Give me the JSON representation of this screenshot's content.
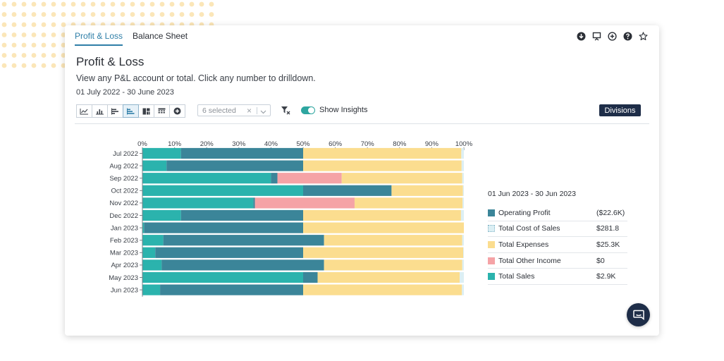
{
  "tabs": [
    {
      "label": "Profit & Loss",
      "active": true
    },
    {
      "label": "Balance Sheet",
      "active": false
    }
  ],
  "top_icons": [
    "download-icon",
    "presentation-icon",
    "add-circle-icon",
    "help-icon",
    "star-icon"
  ],
  "header": {
    "title": "Profit & Loss",
    "subtitle": "View any P&L account or total. Click any number to drilldown.",
    "date_range": "01 July 2022 - 30 June 2023"
  },
  "toolbar": {
    "chart_buttons": [
      "line-chart-icon",
      "column-chart-icon",
      "bar-chart-icon",
      "stacked-bar-chart-icon",
      "treemap-icon",
      "table-icon",
      "add-chart-icon"
    ],
    "active_index": 3,
    "select_text": "6 selected",
    "toggle_label": "Show Insights",
    "toggle_on": true,
    "divisions_label": "Divisions"
  },
  "colors": {
    "operating_profit": "#3b8599",
    "total_cost_of_sales": "#dceff4",
    "total_expenses": "#fbdd8f",
    "total_other_income": "#f5a3a6",
    "total_sales": "#2bb3ad",
    "accent": "#2f7fa8",
    "navy": "#1e2d48"
  },
  "legend": {
    "title": "01 Jun 2023 - 30 Jun 2023",
    "items": [
      {
        "name": "Operating Profit",
        "value": "($22.6K)",
        "color": "#3b8599"
      },
      {
        "name": "Total Cost of Sales",
        "value": "$281.8",
        "color": "#dceff4"
      },
      {
        "name": "Total Expenses",
        "value": "$25.3K",
        "color": "#fbdd8f"
      },
      {
        "name": "Total Other Income",
        "value": "$0",
        "color": "#f5a3a6"
      },
      {
        "name": "Total Sales",
        "value": "$2.9K",
        "color": "#2bb3ad"
      }
    ]
  },
  "chart_data": {
    "type": "bar",
    "orientation": "horizontal",
    "stacked": true,
    "categories": [
      "Jul 2022",
      "Aug 2022",
      "Sep 2022",
      "Oct 2022",
      "Nov 2022",
      "Dec 2022",
      "Jan 2023",
      "Feb 2023",
      "Mar 2023",
      "Apr 2023",
      "May 2023",
      "Jun 2023"
    ],
    "x_ticks": [
      "0%",
      "10%",
      "20%",
      "30%",
      "40%",
      "50%",
      "60%",
      "70%",
      "80%",
      "90%",
      "100%"
    ],
    "xlim": [
      0,
      100
    ],
    "series": [
      {
        "name": "Total Sales",
        "color": "#2bb3ad",
        "values": [
          12,
          7.5,
          40,
          50,
          34.5,
          12,
          0.5,
          6.5,
          4,
          6,
          50,
          5.5
        ]
      },
      {
        "name": "Operating Profit",
        "color": "#3b8599",
        "values": [
          38,
          42.5,
          2,
          27.5,
          0.5,
          38,
          49.5,
          50,
          46,
          50.5,
          4.5,
          44.5
        ]
      },
      {
        "name": "Total Other Income",
        "color": "#f5a3a6",
        "values": [
          0,
          0,
          20,
          0,
          31,
          0,
          0,
          0,
          0,
          0,
          0,
          0
        ]
      },
      {
        "name": "Total Expenses",
        "color": "#fbdd8f",
        "values": [
          49.2,
          49.3,
          37.5,
          22.2,
          33.6,
          49.1,
          50,
          43,
          49.8,
          43,
          44.2,
          49.4
        ]
      },
      {
        "name": "Total Cost of Sales",
        "color": "#dceff4",
        "values": [
          0.8,
          0.7,
          0.5,
          0.3,
          0.4,
          0.9,
          0,
          0.5,
          0.2,
          0.5,
          1.3,
          0.6
        ]
      }
    ],
    "grid": false,
    "legend_position": "right"
  }
}
